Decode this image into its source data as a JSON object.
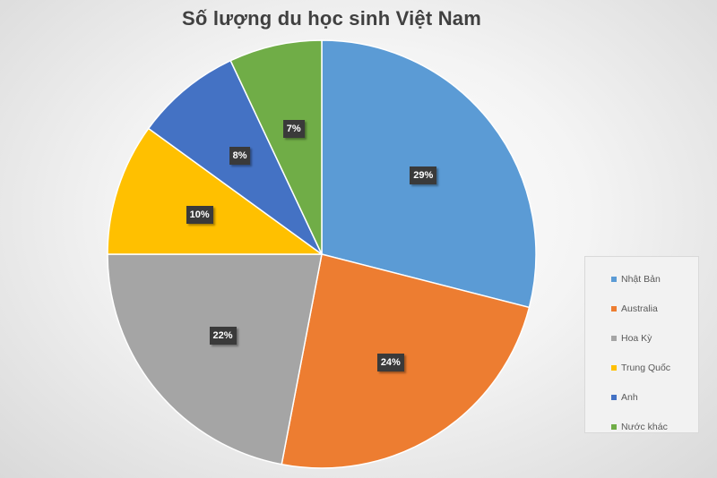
{
  "chart_data": {
    "type": "pie",
    "title": "Số lượng du học sinh Việt Nam",
    "categories": [
      "Nhật Bản",
      "Australia",
      "Hoa Kỳ",
      "Trung Quốc",
      "Anh",
      "Nước khác"
    ],
    "values": [
      29,
      24,
      22,
      10,
      8,
      7
    ],
    "data_labels": [
      "29%",
      "24%",
      "22%",
      "10%",
      "8%",
      "7%"
    ],
    "colors": [
      "#5b9bd5",
      "#ed7d31",
      "#a5a5a5",
      "#ffc000",
      "#4472c4",
      "#70ad47"
    ],
    "legend_position": "right",
    "start_angle": "top",
    "direction": "clockwise"
  }
}
